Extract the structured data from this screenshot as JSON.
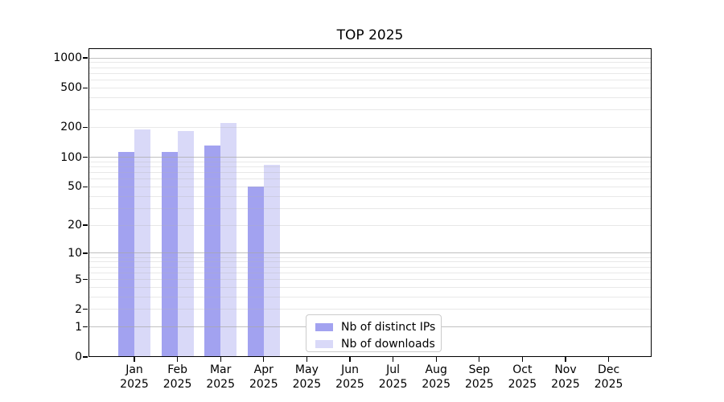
{
  "chart_data": {
    "type": "bar",
    "title": "TOP 2025",
    "x": {
      "categories": [
        "Jan",
        "Feb",
        "Mar",
        "Apr",
        "May",
        "Jun",
        "Jul",
        "Aug",
        "Sep",
        "Oct",
        "Nov",
        "Dec"
      ],
      "year_label": "2025"
    },
    "y_axis": {
      "scale": "log10(value+1)",
      "ticks": [
        1000,
        500,
        200,
        100,
        50,
        20,
        10,
        5,
        2,
        1,
        0
      ],
      "range": [
        0,
        1000
      ]
    },
    "series": [
      {
        "name": "Nb of distinct IPs",
        "color": "#a2a2f0",
        "values": [
          114,
          114,
          131,
          50,
          0,
          0,
          0,
          0,
          0,
          0,
          0,
          0
        ]
      },
      {
        "name": "Nb of downloads",
        "color": "#d9d9f8",
        "values": [
          191,
          184,
          222,
          84,
          0,
          0,
          0,
          0,
          0,
          0,
          0,
          0
        ]
      }
    ],
    "grid": {
      "minor_color": "rgba(178,178,178,0.3)",
      "major_color": "rgba(168,168,168,0.72)",
      "major_at": [
        1,
        10,
        100,
        1000
      ]
    },
    "legend": {
      "position": "lower-center",
      "entries": [
        "Nb of distinct IPs",
        "Nb of downloads"
      ]
    }
  }
}
